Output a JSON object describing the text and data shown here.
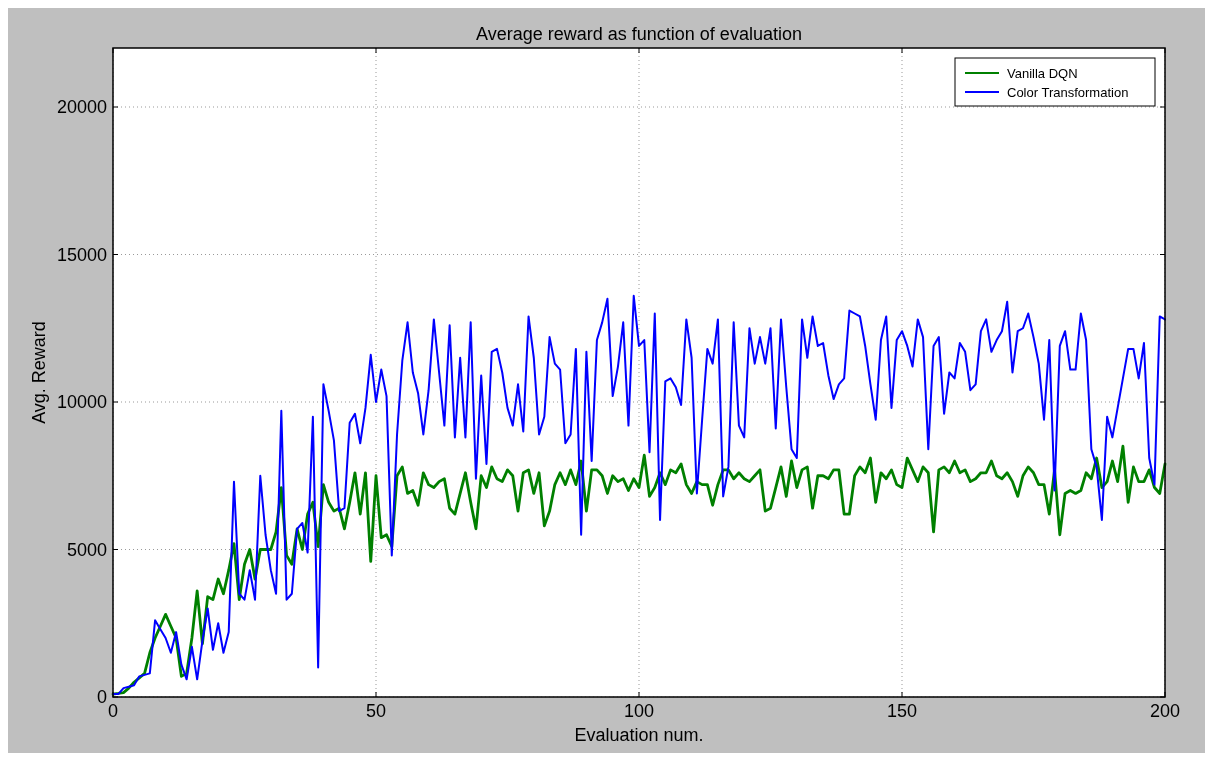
{
  "chart_data": {
    "type": "line",
    "title": "Average reward as function of evaluation",
    "xlabel": "Evaluation num.",
    "ylabel": "Avg. Reward",
    "x": [
      0,
      1,
      2,
      3,
      4,
      5,
      6,
      7,
      8,
      9,
      10,
      11,
      12,
      13,
      14,
      15,
      16,
      17,
      18,
      19,
      20,
      21,
      22,
      23,
      24,
      25,
      26,
      27,
      28,
      29,
      30,
      31,
      32,
      33,
      34,
      35,
      36,
      37,
      38,
      39,
      40,
      41,
      42,
      43,
      44,
      45,
      46,
      47,
      48,
      49,
      50,
      51,
      52,
      53,
      54,
      55,
      56,
      57,
      58,
      59,
      60,
      61,
      62,
      63,
      64,
      65,
      66,
      67,
      68,
      69,
      70,
      71,
      72,
      73,
      74,
      75,
      76,
      77,
      78,
      79,
      80,
      81,
      82,
      83,
      84,
      85,
      86,
      87,
      88,
      89,
      90,
      91,
      92,
      93,
      94,
      95,
      96,
      97,
      98,
      99,
      100,
      101,
      102,
      103,
      104,
      105,
      106,
      107,
      108,
      109,
      110,
      111,
      112,
      113,
      114,
      115,
      116,
      117,
      118,
      119,
      120,
      121,
      122,
      123,
      124,
      125,
      126,
      127,
      128,
      129,
      130,
      131,
      132,
      133,
      134,
      135,
      136,
      137,
      138,
      139,
      140,
      141,
      142,
      143,
      144,
      145,
      146,
      147,
      148,
      149,
      150,
      151,
      152,
      153,
      154,
      155,
      156,
      157,
      158,
      159,
      160,
      161,
      162,
      163,
      164,
      165,
      166,
      167,
      168,
      169,
      170,
      171,
      172,
      173,
      174,
      175,
      176,
      177,
      178,
      179,
      180,
      181,
      182,
      183,
      184,
      185,
      186,
      187,
      188,
      189,
      190,
      191,
      192,
      193,
      194,
      195,
      196,
      197,
      198,
      199,
      200
    ],
    "series": [
      {
        "name": "Vanilla DQN",
        "color": "#008000",
        "values": [
          100,
          120,
          150,
          300,
          500,
          650,
          800,
          1500,
          2000,
          2400,
          2800,
          2400,
          2000,
          700,
          800,
          2000,
          3600,
          1800,
          3400,
          3300,
          4000,
          3500,
          4300,
          5200,
          3300,
          4500,
          5000,
          4000,
          5000,
          5000,
          5000,
          5600,
          7100,
          4800,
          4500,
          5700,
          5000,
          6200,
          6600,
          5100,
          7200,
          6600,
          6300,
          6400,
          5700,
          6600,
          7600,
          6200,
          7600,
          4600,
          7500,
          5400,
          5500,
          5100,
          7500,
          7800,
          6900,
          7000,
          6500,
          7600,
          7200,
          7100,
          7300,
          7400,
          6400,
          6200,
          6900,
          7600,
          6600,
          5700,
          7500,
          7100,
          7800,
          7400,
          7300,
          7700,
          7500,
          6300,
          7600,
          7700,
          6900,
          7600,
          5800,
          6300,
          7200,
          7600,
          7200,
          7700,
          7200,
          8000,
          6300,
          7700,
          7700,
          7500,
          6900,
          7500,
          7300,
          7400,
          7000,
          7400,
          7100,
          8200,
          6800,
          7100,
          7600,
          7200,
          7700,
          7600,
          7900,
          7200,
          6900,
          7300,
          7200,
          7200,
          6500,
          7200,
          7700,
          7700,
          7400,
          7600,
          7400,
          7300,
          7500,
          7700,
          6300,
          6400,
          7100,
          7800,
          6800,
          8000,
          7100,
          7700,
          7800,
          6400,
          7500,
          7500,
          7400,
          7700,
          7700,
          6200,
          6200,
          7500,
          7800,
          7600,
          8100,
          6600,
          7600,
          7400,
          7700,
          7200,
          7100,
          8100,
          7700,
          7300,
          7800,
          7600,
          5600,
          7700,
          7800,
          7600,
          8000,
          7600,
          7700,
          7300,
          7400,
          7600,
          7600,
          8000,
          7500,
          7400,
          7600,
          7300,
          6800,
          7500,
          7800,
          7600,
          7200,
          7200,
          6200,
          7700,
          5500,
          6900,
          7000,
          6900,
          7000,
          7600,
          7400,
          8100,
          7100,
          7300,
          8000,
          7300,
          8500,
          6600,
          7800,
          7300,
          7300,
          7700,
          7100,
          6900,
          7900
        ]
      },
      {
        "name": "Color Transformation",
        "color": "#0000ff",
        "values": [
          100,
          100,
          300,
          350,
          400,
          700,
          750,
          800,
          2600,
          2300,
          2000,
          1500,
          2200,
          1100,
          600,
          1700,
          600,
          1900,
          3000,
          1600,
          2500,
          1500,
          2200,
          7300,
          3500,
          3300,
          4300,
          3300,
          7500,
          5500,
          4300,
          3500,
          9700,
          3300,
          3500,
          5700,
          5900,
          4900,
          9500,
          1000,
          10600,
          9700,
          8700,
          6300,
          6400,
          9300,
          9600,
          8600,
          9800,
          11600,
          10000,
          11100,
          10200,
          4800,
          8900,
          11400,
          12700,
          11000,
          10300,
          8900,
          10400,
          12800,
          11000,
          9200,
          12600,
          8800,
          11500,
          8800,
          12700,
          7400,
          10900,
          7900,
          11700,
          11800,
          11000,
          9800,
          9200,
          10600,
          9000,
          12900,
          11500,
          8900,
          9500,
          12200,
          11300,
          11100,
          8600,
          8900,
          11800,
          5500,
          11700,
          8000,
          12100,
          12700,
          13500,
          10200,
          11200,
          12700,
          9200,
          13600,
          11900,
          12100,
          8300,
          13000,
          6000,
          10700,
          10800,
          10500,
          9900,
          12800,
          11500,
          6900,
          9400,
          11800,
          11300,
          12800,
          6800,
          7800,
          12700,
          9200,
          8800,
          12500,
          11300,
          12200,
          11300,
          12500,
          9100,
          12800,
          10500,
          8400,
          8100,
          12800,
          11500,
          12900,
          11900,
          12000,
          10900,
          10100,
          10600,
          10800,
          13100,
          13000,
          12900,
          11900,
          10600,
          9400,
          12100,
          12900,
          9800,
          12100,
          12400,
          11900,
          11200,
          12800,
          12200,
          8400,
          11900,
          12200,
          9600,
          11000,
          10800,
          12000,
          11700,
          10400,
          10600,
          12400,
          12800,
          11700,
          12100,
          12400,
          13400,
          11000,
          12400,
          12500,
          13000,
          12200,
          11300,
          9400,
          12100,
          7000,
          11900,
          12400,
          11100,
          11100,
          13000,
          12100,
          8400,
          7800,
          6000,
          9500,
          8800,
          9800,
          10800,
          11800,
          11800,
          10800,
          12000,
          8100,
          7200,
          12900,
          12800
        ]
      }
    ],
    "xlim": [
      0,
      200
    ],
    "xticks": [
      0,
      50,
      100,
      150,
      200
    ],
    "ylim": [
      0,
      22000
    ],
    "yticks": [
      0,
      5000,
      10000,
      15000,
      20000
    ],
    "grid": true,
    "legend": "top right",
    "line_style": "solid",
    "marker": "none"
  }
}
